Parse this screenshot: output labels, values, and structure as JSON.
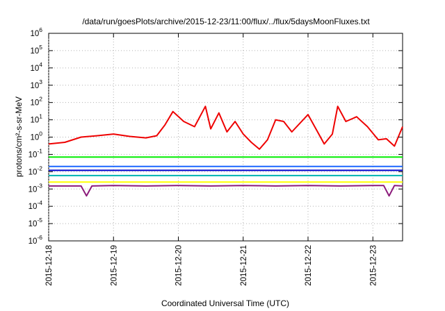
{
  "chart_data": {
    "type": "line",
    "title": "/data/run/goesPlots/archive/2015-12-23/11:00/flux/../flux/5daysMoonFluxes.txt",
    "xlabel": "Coordinated Universal Time (UTC)",
    "ylabel": "protons/cm²-s-sr-MeV",
    "y_scale": "log",
    "ylim": [
      1e-06,
      1000000.0
    ],
    "y_ticks": [
      {
        "base": "10",
        "exp": "-6"
      },
      {
        "base": "10",
        "exp": "-5"
      },
      {
        "base": "10",
        "exp": "-4"
      },
      {
        "base": "10",
        "exp": "-3"
      },
      {
        "base": "10",
        "exp": "-2"
      },
      {
        "base": "10",
        "exp": "-1"
      },
      {
        "base": "10",
        "exp": "0"
      },
      {
        "base": "10",
        "exp": "1"
      },
      {
        "base": "10",
        "exp": "2"
      },
      {
        "base": "10",
        "exp": "3"
      },
      {
        "base": "10",
        "exp": "4"
      },
      {
        "base": "10",
        "exp": "5"
      },
      {
        "base": "10",
        "exp": "6"
      }
    ],
    "xlim": [
      "2015-12-18 00:00",
      "2015-12-23 11:00"
    ],
    "x_ticks": [
      "2015-12-18",
      "2015-12-19",
      "2015-12-20",
      "2015-12-21",
      "2015-12-22",
      "2015-12-23"
    ],
    "grid": true,
    "legend": "none",
    "series": [
      {
        "color": "#8b1a7a",
        "x": [
          "2015-12-18 00:00",
          "2015-12-18 12:00",
          "2015-12-18 14:00",
          "2015-12-18 16:00",
          "2015-12-19 00:00",
          "2015-12-19 12:00",
          "2015-12-20 00:00",
          "2015-12-20 12:00",
          "2015-12-21 00:00",
          "2015-12-21 12:00",
          "2015-12-22 00:00",
          "2015-12-22 12:00",
          "2015-12-23 00:00",
          "2015-12-23 04:00",
          "2015-12-23 06:00",
          "2015-12-23 08:00",
          "2015-12-23 11:00"
        ],
        "y": [
          0.0015,
          0.0015,
          0.0004,
          0.0015,
          0.0016,
          0.0015,
          0.0016,
          0.0015,
          0.0016,
          0.0015,
          0.0016,
          0.0015,
          0.0016,
          0.0016,
          0.0004,
          0.0016,
          0.0015
        ]
      },
      {
        "color": "#ffff00",
        "x": [
          "2015-12-18 00:00",
          "2015-12-19 00:00",
          "2015-12-20 00:00",
          "2015-12-21 00:00",
          "2015-12-22 00:00",
          "2015-12-23 00:00",
          "2015-12-23 11:00"
        ],
        "y": [
          0.0025,
          0.0025,
          0.0025,
          0.0025,
          0.0025,
          0.0025,
          0.0025
        ]
      },
      {
        "color": "#00b3b3",
        "x": [
          "2015-12-18 00:00",
          "2015-12-19 00:00",
          "2015-12-20 00:00",
          "2015-12-21 00:00",
          "2015-12-22 00:00",
          "2015-12-23 00:00",
          "2015-12-23 11:00"
        ],
        "y": [
          0.006,
          0.006,
          0.006,
          0.006,
          0.006,
          0.006,
          0.006
        ]
      },
      {
        "color": "#1a66ff",
        "x": [
          "2015-12-18 00:00",
          "2015-12-19 00:00",
          "2015-12-20 00:00",
          "2015-12-21 00:00",
          "2015-12-22 00:00",
          "2015-12-23 00:00",
          "2015-12-23 11:00"
        ],
        "y": [
          0.02,
          0.02,
          0.02,
          0.02,
          0.02,
          0.02,
          0.02
        ]
      },
      {
        "color": "#0000cc",
        "x": [
          "2015-12-18 00:00",
          "2015-12-19 00:00",
          "2015-12-20 00:00",
          "2015-12-21 00:00",
          "2015-12-22 00:00",
          "2015-12-23 00:00",
          "2015-12-23 11:00"
        ],
        "y": [
          0.012,
          0.012,
          0.012,
          0.012,
          0.012,
          0.012,
          0.012
        ]
      },
      {
        "color": "#00ee00",
        "x": [
          "2015-12-18 00:00",
          "2015-12-19 00:00",
          "2015-12-20 00:00",
          "2015-12-21 00:00",
          "2015-12-22 00:00",
          "2015-12-23 00:00",
          "2015-12-23 11:00"
        ],
        "y": [
          0.07,
          0.07,
          0.07,
          0.07,
          0.07,
          0.07,
          0.07
        ]
      },
      {
        "color": "#ee0000",
        "x": [
          "2015-12-18 00:00",
          "2015-12-18 06:00",
          "2015-12-18 12:00",
          "2015-12-18 18:00",
          "2015-12-19 00:00",
          "2015-12-19 06:00",
          "2015-12-19 12:00",
          "2015-12-19 16:00",
          "2015-12-19 19:00",
          "2015-12-19 22:00",
          "2015-12-20 02:00",
          "2015-12-20 06:00",
          "2015-12-20 10:00",
          "2015-12-20 12:00",
          "2015-12-20 15:00",
          "2015-12-20 18:00",
          "2015-12-20 21:00",
          "2015-12-21 00:00",
          "2015-12-21 03:00",
          "2015-12-21 06:00",
          "2015-12-21 09:00",
          "2015-12-21 12:00",
          "2015-12-21 15:00",
          "2015-12-21 18:00",
          "2015-12-22 00:00",
          "2015-12-22 04:00",
          "2015-12-22 06:00",
          "2015-12-22 09:00",
          "2015-12-22 11:00",
          "2015-12-22 14:00",
          "2015-12-22 18:00",
          "2015-12-22 22:00",
          "2015-12-23 02:00",
          "2015-12-23 05:00",
          "2015-12-23 08:00",
          "2015-12-23 11:00"
        ],
        "y": [
          0.4,
          0.5,
          1.0,
          1.2,
          1.5,
          1.1,
          0.9,
          1.2,
          5,
          30,
          8,
          4,
          60,
          3,
          25,
          2,
          8,
          1.5,
          0.5,
          0.2,
          0.7,
          10,
          8,
          2,
          20,
          1.5,
          0.4,
          1.5,
          60,
          8,
          15,
          4,
          0.7,
          0.8,
          0.3,
          4
        ]
      }
    ]
  }
}
